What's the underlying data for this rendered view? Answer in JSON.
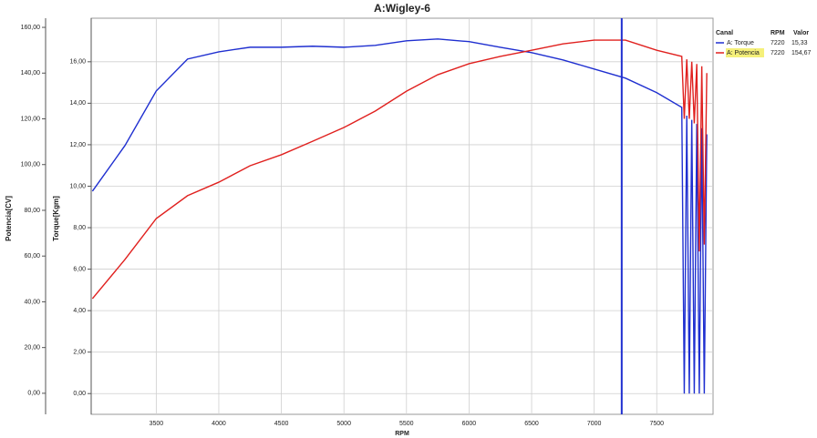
{
  "chart_data": {
    "type": "line",
    "title": "A:Wigley-6",
    "xlabel": "RPM",
    "ylabel": "Torque[Kgm]",
    "y2label": "Potencia[CV]",
    "xlim": [
      2980,
      7950
    ],
    "xticks": [
      3500,
      4000,
      4500,
      5000,
      5500,
      6000,
      6500,
      7000,
      7500
    ],
    "ylim": [
      -1.0,
      18.1
    ],
    "yticks": [
      {
        "value": 0,
        "label": "0,00"
      },
      {
        "value": 2,
        "label": "2,00"
      },
      {
        "value": 4,
        "label": "4,00"
      },
      {
        "value": 6,
        "label": "6,00"
      },
      {
        "value": 8,
        "label": "8,00"
      },
      {
        "value": 10,
        "label": "10,00"
      },
      {
        "value": 12,
        "label": "12,00"
      },
      {
        "value": 14,
        "label": "14,00"
      },
      {
        "value": 16,
        "label": "16,00"
      }
    ],
    "y2lim": [
      -9.2,
      164
    ],
    "y2ticks": [
      {
        "value": 0,
        "label": "0,00"
      },
      {
        "value": 20,
        "label": "20,00"
      },
      {
        "value": 40,
        "label": "40,00"
      },
      {
        "value": 60,
        "label": "60,00"
      },
      {
        "value": 80,
        "label": "80,00"
      },
      {
        "value": 100,
        "label": "100,00"
      },
      {
        "value": 120,
        "label": "120,00"
      },
      {
        "value": 140,
        "label": "140,00"
      },
      {
        "value": 160,
        "label": "160,00"
      }
    ],
    "grid": true,
    "series": [
      {
        "name": "A: Torque",
        "color": "#1f2fd0",
        "x": [
          2990,
          3250,
          3500,
          3750,
          4000,
          4250,
          4500,
          4750,
          5000,
          5250,
          5500,
          5750,
          6000,
          6250,
          6500,
          6750,
          7000,
          7250,
          7500,
          7700,
          7720,
          7740,
          7760,
          7780,
          7800,
          7820,
          7840,
          7860,
          7880,
          7900
        ],
        "values": [
          9.76,
          11.96,
          14.59,
          16.13,
          16.48,
          16.7,
          16.7,
          16.75,
          16.7,
          16.79,
          17.01,
          17.1,
          16.97,
          16.7,
          16.44,
          16.09,
          15.65,
          15.21,
          14.51,
          13.8,
          0,
          13.4,
          0,
          13.2,
          0,
          13.0,
          0,
          12.8,
          0,
          12.5
        ]
      },
      {
        "name": "A: Potencia",
        "color": "#e0201e",
        "axis": "y2",
        "x": [
          2990,
          3250,
          3500,
          3750,
          4000,
          4250,
          4500,
          4750,
          5000,
          5250,
          5500,
          5750,
          6000,
          6250,
          6500,
          6750,
          7000,
          7250,
          7500,
          7700,
          7720,
          7740,
          7760,
          7780,
          7800,
          7820,
          7840,
          7860,
          7880,
          7900
        ],
        "values": [
          41.4,
          58.5,
          76.4,
          86.4,
          92.3,
          99.5,
          104.3,
          110.2,
          116.2,
          123.4,
          132.1,
          139.3,
          144.1,
          147.3,
          150.0,
          152.8,
          154.4,
          154.4,
          150.0,
          147.3,
          120,
          146,
          120,
          145,
          118,
          144,
          62,
          143,
          65,
          140
        ]
      }
    ],
    "cursor": {
      "x": 7220,
      "headers": [
        "Canal",
        "RPM",
        "Valor"
      ],
      "readouts": [
        {
          "value": 15.33,
          "label": "15,33"
        },
        {
          "value": 154.67,
          "label": "154,67"
        }
      ]
    }
  }
}
